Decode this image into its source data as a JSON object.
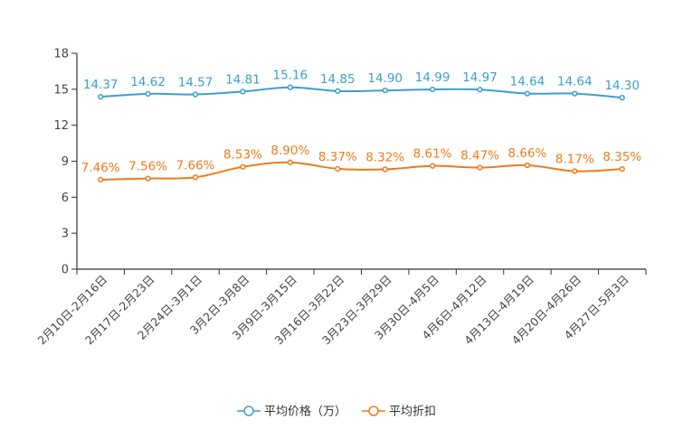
{
  "chart_data": {
    "type": "line",
    "title": "",
    "xlabel": "",
    "ylabel": "",
    "ylim": [
      0,
      18
    ],
    "yticks": [
      0,
      3,
      6,
      9,
      12,
      15,
      18
    ],
    "grid": false,
    "legend_position": "bottom",
    "categories": [
      "2月10日-2月16日",
      "2月17日-2月23日",
      "2月24日-3月1日",
      "3月2日-3月8日",
      "3月9日-3月15日",
      "3月16日-3月22日",
      "3月23日-3月29日",
      "3月30日-4月5日",
      "4月6日-4月12日",
      "4月13日-4月19日",
      "4月20日-4月26日",
      "4月27日-5月3日"
    ],
    "series": [
      {
        "name": "平均价格（万）",
        "color": "#3b9fd1",
        "values": [
          14.37,
          14.62,
          14.57,
          14.81,
          15.16,
          14.85,
          14.9,
          14.99,
          14.97,
          14.64,
          14.64,
          14.3
        ],
        "labels": [
          "14.37",
          "14.62",
          "14.57",
          "14.81",
          "15.16",
          "14.85",
          "14.90",
          "14.99",
          "14.97",
          "14.64",
          "14.64",
          "14.30"
        ]
      },
      {
        "name": "平均折扣",
        "color": "#f07a1a",
        "values": [
          7.46,
          7.56,
          7.66,
          8.53,
          8.9,
          8.37,
          8.32,
          8.61,
          8.47,
          8.66,
          8.17,
          8.35
        ],
        "labels": [
          "7.46%",
          "7.56%",
          "7.66%",
          "8.53%",
          "8.90%",
          "8.37%",
          "8.32%",
          "8.61%",
          "8.47%",
          "8.66%",
          "8.17%",
          "8.35%"
        ]
      }
    ]
  }
}
